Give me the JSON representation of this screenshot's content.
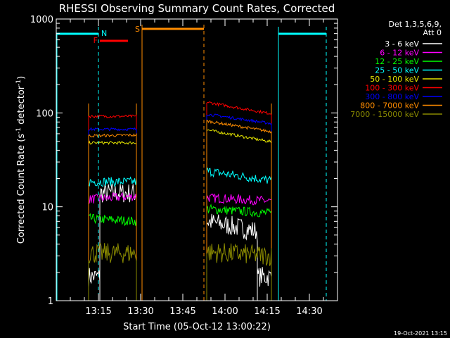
{
  "chart_data": {
    "type": "line",
    "title": "RHESSI Observing Summary Count Rates, Corrected",
    "xlabel": "Start Time (05-Oct-12 13:00:22)",
    "ylabel": "Corrected Count Rate (s-1 detector-1)",
    "ylabel_parts": {
      "a": "Corrected Count Rate (s",
      "sup1": "-1",
      "b": " detector",
      "sup2": "-1",
      "c": ")"
    },
    "y_scale": "log",
    "ylim": [
      1,
      1000
    ],
    "xlim_minutes": [
      0,
      100
    ],
    "x_ticks": [
      {
        "t": 15,
        "label": "13:15"
      },
      {
        "t": 30,
        "label": "13:30"
      },
      {
        "t": 45,
        "label": "13:45"
      },
      {
        "t": 60,
        "label": "14:00"
      },
      {
        "t": 75,
        "label": "14:15"
      },
      {
        "t": 90,
        "label": "14:30"
      }
    ],
    "y_ticks": [
      {
        "v": 1,
        "label": "1"
      },
      {
        "v": 10,
        "label": "10"
      },
      {
        "v": 100,
        "label": "100"
      },
      {
        "v": 1000,
        "label": "1000"
      }
    ],
    "legend": {
      "placement": "right",
      "header": [
        "Det 1,3,5,6,9,",
        "Att 0"
      ],
      "entries": [
        {
          "label": "3 - 6 keV",
          "color": "#ffffff"
        },
        {
          "label": "6 - 12 keV",
          "color": "#ff00ff"
        },
        {
          "label": "12 - 25 keV",
          "color": "#00ff00"
        },
        {
          "label": "25 - 50 keV",
          "color": "#00ffff"
        },
        {
          "label": "50 - 100 keV",
          "color": "#e6e600"
        },
        {
          "label": "100 - 300 keV",
          "color": "#ff0000"
        },
        {
          "label": "300 - 800 keV",
          "color": "#0000ff"
        },
        {
          "label": "800 - 7000 keV",
          "color": "#ff8c00"
        },
        {
          "label": "7000 - 15000 keV",
          "color": "#8b8b00"
        }
      ]
    },
    "series": [
      {
        "name": "3 - 6 keV",
        "color": "#ffffff",
        "segments": [
          {
            "t0": 11.5,
            "t1": 15.5,
            "v0": 1.8,
            "v1": 1.8
          },
          {
            "t0": 15.5,
            "t1": 28.5,
            "v0": 14,
            "v1": 14
          },
          {
            "t0": 53.5,
            "t1": 71.5,
            "v0": 7,
            "v1": 5.5
          },
          {
            "t0": 71.5,
            "t1": 76.5,
            "v0": 1.8,
            "v1": 1.8
          }
        ]
      },
      {
        "name": "6 - 12 keV",
        "color": "#ff00ff",
        "segments": [
          {
            "t0": 11.5,
            "t1": 28.5,
            "v0": 12,
            "v1": 13
          },
          {
            "t0": 53.5,
            "t1": 76.5,
            "v0": 12.5,
            "v1": 11.5
          }
        ]
      },
      {
        "name": "12 - 25 keV",
        "color": "#00ff00",
        "segments": [
          {
            "t0": 11.5,
            "t1": 28.5,
            "v0": 7.5,
            "v1": 7
          },
          {
            "t0": 53.5,
            "t1": 76.5,
            "v0": 9.5,
            "v1": 8.5
          }
        ]
      },
      {
        "name": "25 - 50 keV",
        "color": "#00ffff",
        "segments": [
          {
            "t0": 11.5,
            "t1": 28.5,
            "v0": 18.5,
            "v1": 18.5
          },
          {
            "t0": 53.5,
            "t1": 76.5,
            "v0": 24,
            "v1": 19
          }
        ]
      },
      {
        "name": "50 - 100 keV",
        "color": "#e6e600",
        "segments": [
          {
            "t0": 11.5,
            "t1": 28.5,
            "v0": 48,
            "v1": 48
          },
          {
            "t0": 53.5,
            "t1": 76.5,
            "v0": 66,
            "v1": 49
          }
        ]
      },
      {
        "name": "100 - 300 keV",
        "color": "#ff0000",
        "segments": [
          {
            "t0": 11.5,
            "t1": 28.5,
            "v0": 92,
            "v1": 92
          },
          {
            "t0": 53.5,
            "t1": 76.5,
            "v0": 130,
            "v1": 98
          }
        ]
      },
      {
        "name": "300 - 800 keV",
        "color": "#0000ff",
        "segments": [
          {
            "t0": 11.5,
            "t1": 28.5,
            "v0": 67,
            "v1": 67
          },
          {
            "t0": 53.5,
            "t1": 76.5,
            "v0": 97,
            "v1": 77
          }
        ]
      },
      {
        "name": "800 - 7000 keV",
        "color": "#ff8c00",
        "segments": [
          {
            "t0": 11.5,
            "t1": 28.5,
            "v0": 57,
            "v1": 58
          },
          {
            "t0": 53.5,
            "t1": 76.5,
            "v0": 82,
            "v1": 63
          }
        ]
      },
      {
        "name": "7000 - 15000 keV",
        "color": "#8b8b00",
        "segments": [
          {
            "t0": 11.5,
            "t1": 28.5,
            "v0": 3.2,
            "v1": 3.2
          },
          {
            "t0": 53.5,
            "t1": 76.5,
            "v0": 3.3,
            "v1": 3
          }
        ]
      }
    ],
    "flags": {
      "night": {
        "label": "N",
        "color": "#00ffff",
        "segments": [
          {
            "t0": 0,
            "t1": 15
          },
          {
            "t0": 79,
            "t1": 96
          }
        ],
        "dashed_lines": [
          15,
          96
        ],
        "solid_lines": [
          79
        ]
      },
      "flare": {
        "label": "F",
        "color": "#ff0000",
        "segments": [
          {
            "t0": 15.5,
            "t1": 25.5
          }
        ]
      },
      "saa": {
        "label": "S",
        "color": "#ff8c00",
        "segments": [
          {
            "t0": 30.5,
            "t1": 52.5
          }
        ],
        "solid_lines": [
          30.5
        ],
        "dashed_lines": [
          52.5
        ]
      }
    },
    "attenuator_boundaries": [
      {
        "t": 11.5,
        "color": "#ff8c00"
      },
      {
        "t": 28.5,
        "color": "#ff8c00"
      },
      {
        "t": 53.5,
        "color": "#ff8c00"
      },
      {
        "t": 76.5,
        "color": "#ff8c00"
      }
    ],
    "grid": false
  },
  "footer": {
    "timestamp": "19-Oct-2021 13:15"
  }
}
